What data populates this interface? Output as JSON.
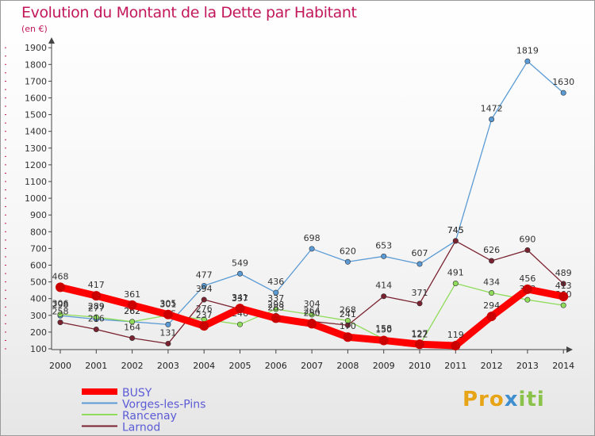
{
  "header": {
    "title": "Evolution du Montant de la Dette par Habitant",
    "subtitle": "(en €)"
  },
  "logo": {
    "part1": "Pro",
    "part2": "x",
    "part3": "iti"
  },
  "chart_data": {
    "type": "line",
    "title": "Evolution du Montant de la Dette par Habitant",
    "ylabel": "(en €)",
    "xlabel": "",
    "x": [
      "2000",
      "2001",
      "2002",
      "2003",
      "2004",
      "2005",
      "2006",
      "2007",
      "2008",
      "2009",
      "2010",
      "2011",
      "2012",
      "2013",
      "2014"
    ],
    "ylim": [
      100,
      1900
    ],
    "yticks": [
      100,
      200,
      300,
      400,
      500,
      600,
      700,
      800,
      900,
      1000,
      1100,
      1200,
      1300,
      1400,
      1500,
      1600,
      1700,
      1800,
      1900
    ],
    "grid": false,
    "legend": "bottom-left",
    "series": [
      {
        "name": "Vorges-les-Pins",
        "color": "#5b9bd5",
        "values": [
          298,
          277,
          262,
          245,
          477,
          549,
          436,
          698,
          620,
          653,
          607,
          745,
          1472,
          1819,
          1630
        ]
      },
      {
        "name": "Rancenay",
        "color": "#8fdc5a",
        "values": [
          306,
          289,
          262,
          301,
          276,
          246,
          337,
          304,
          268,
          158,
          122,
          491,
          434,
          393,
          360
        ]
      },
      {
        "name": "Larnod",
        "color": "#7a2230",
        "values": [
          258,
          216,
          164,
          131,
          394,
          337,
          298,
          264,
          241,
          414,
          371,
          745,
          626,
          690,
          489
        ]
      },
      {
        "name": "BUSY",
        "color": "#ff0000",
        "values": [
          468,
          417,
          361,
          305,
          237,
          341,
          283,
          250,
          170,
          150,
          127,
          119,
          294,
          456,
          413
        ]
      }
    ]
  }
}
